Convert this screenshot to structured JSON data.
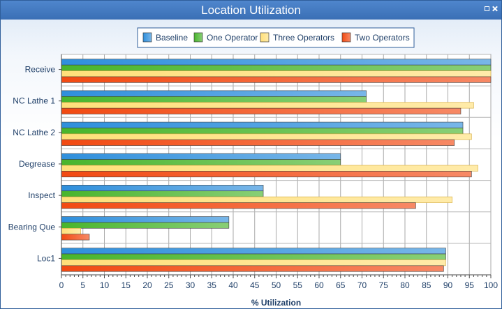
{
  "window": {
    "title": "Location Utilization"
  },
  "chart_data": {
    "type": "bar",
    "orientation": "horizontal",
    "title": "Location Utilization",
    "xlabel": "% Utilization",
    "ylabel": "",
    "xlim": [
      0,
      100
    ],
    "xticks": [
      0,
      5,
      10,
      15,
      20,
      25,
      30,
      35,
      40,
      45,
      50,
      55,
      60,
      65,
      70,
      75,
      80,
      85,
      90,
      95,
      100
    ],
    "grid": true,
    "legend_position": "top-center",
    "categories": [
      "Receive",
      "NC Lathe 1",
      "NC Lathe 2",
      "Degrease",
      "Inspect",
      "Bearing Que",
      "Loc1"
    ],
    "series": [
      {
        "name": "Baseline",
        "color": "#2f8fdc",
        "values": [
          100,
          71,
          93.5,
          65,
          47,
          39,
          89.5
        ]
      },
      {
        "name": "One Operator",
        "color": "#49b52c",
        "values": [
          100,
          71,
          93.5,
          65,
          47,
          39,
          89.5
        ]
      },
      {
        "name": "Three Operators",
        "color": "#ffe07a",
        "values": [
          100,
          96,
          95.5,
          97,
          91,
          4.5,
          89.5
        ]
      },
      {
        "name": "Two Operators",
        "color": "#f24a12",
        "values": [
          100,
          93,
          91.5,
          95.5,
          82.5,
          6.5,
          89
        ]
      }
    ]
  }
}
